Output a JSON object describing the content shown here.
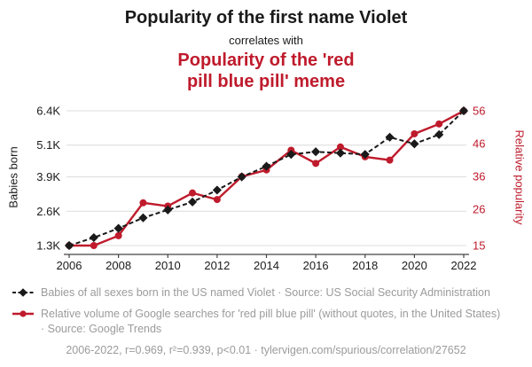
{
  "header": {
    "title": "Popularity of the first name Violet",
    "correlates_label": "correlates with",
    "red_title_line1": "Popularity of the 'red",
    "red_title_line2": "pill blue pill' meme"
  },
  "colors": {
    "accent_red": "#bf1b2c",
    "series_black": "#1a1a1a",
    "grid_gray": "#dcdcdc",
    "legend_gray": "#9b9b9b"
  },
  "chart_data": {
    "type": "line",
    "x": [
      2006,
      2007,
      2008,
      2009,
      2010,
      2011,
      2012,
      2013,
      2014,
      2015,
      2016,
      2017,
      2018,
      2019,
      2020,
      2021,
      2022
    ],
    "x_ticks": [
      2006,
      2008,
      2010,
      2012,
      2014,
      2016,
      2018,
      2020,
      2022
    ],
    "grid": true,
    "y_left": {
      "label": "Babies born",
      "min": 1300,
      "max": 6400,
      "ticks": [
        {
          "label": "1.3K",
          "value": 1300
        },
        {
          "label": "2.6K",
          "value": 2600
        },
        {
          "label": "3.9K",
          "value": 3900
        },
        {
          "label": "5.1K",
          "value": 5100
        },
        {
          "label": "6.4K",
          "value": 6400
        }
      ]
    },
    "y_right": {
      "label": "Relative popularity",
      "min": 15,
      "max": 56,
      "ticks": [
        {
          "label": "15",
          "value": 15
        },
        {
          "label": "26",
          "value": 26
        },
        {
          "label": "36",
          "value": 36
        },
        {
          "label": "46",
          "value": 46
        },
        {
          "label": "56",
          "value": 56
        }
      ]
    },
    "series": [
      {
        "name": "Babies of all sexes born in the US named Violet",
        "axis": "left",
        "color": "#1a1a1a",
        "line": "dashed",
        "marker": "diamond",
        "values": [
          1300,
          1600,
          1950,
          2350,
          2650,
          2950,
          3400,
          3900,
          4300,
          4750,
          4850,
          4800,
          4750,
          5400,
          5150,
          5500,
          6400
        ]
      },
      {
        "name": "Relative volume of Google searches for 'red pill blue pill'",
        "axis": "right",
        "color": "#bf1b2c",
        "line": "solid",
        "marker": "circle",
        "values": [
          15,
          15,
          18,
          28,
          27,
          31,
          29,
          36,
          38,
          44,
          40,
          45,
          42,
          41,
          49,
          52,
          56
        ]
      }
    ]
  },
  "legend": {
    "entries": [
      {
        "marker": "black-diamond-dashed-line",
        "text": "Babies of all sexes born in the US named Violet · Source: US Social Security Administration"
      },
      {
        "marker": "red-circle-solid-line",
        "text": "Relative volume of Google searches for 'red pill blue pill' (without quotes, in the United States) · Source: Google Trends"
      }
    ]
  },
  "footer": {
    "text": "2006-2022, r=0.969, r²=0.939, p<0.01 · tylervigen.com/spurious/correlation/27652"
  }
}
